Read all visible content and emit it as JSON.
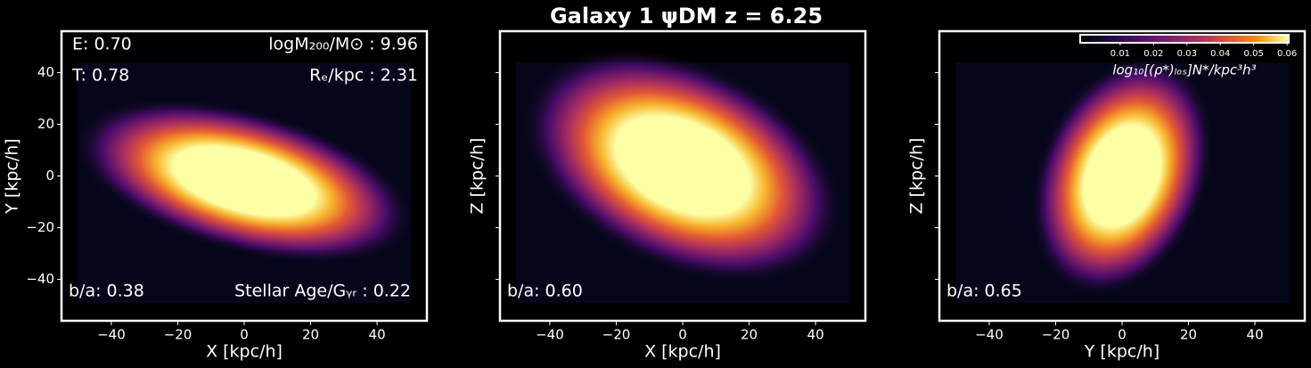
{
  "title": "Galaxy 1 ψDM  z = 6.25",
  "chart_data": [
    {
      "type": "heatmap",
      "xlabel": "X [kpc/h]",
      "ylabel": "Y [kpc/h]",
      "xlim": [
        -55,
        55
      ],
      "ylim": [
        -56,
        56
      ],
      "xticks": [
        {
          "value": -40,
          "label": "−40"
        },
        {
          "value": -20,
          "label": "−20"
        },
        0,
        20,
        40
      ],
      "yticks": [
        {
          "value": -40,
          "label": "−40"
        },
        {
          "value": -20,
          "label": "−20"
        },
        0,
        20,
        40
      ],
      "ytick_labels": true,
      "annotations": [
        {
          "text": "E: 0.70",
          "position": "top-left"
        },
        {
          "text": "T: 0.78",
          "position": "second-left"
        },
        {
          "text": "logM₂₀₀/M⊙ : 9.96",
          "position": "top-right"
        },
        {
          "text": "Rₑ/kpc : 2.31",
          "position": "second-right"
        },
        {
          "text": "b/a: 0.38",
          "position": "bottom-left"
        },
        {
          "text": "Stellar Age/Gᵧᵣ : 0.22",
          "position": "bottom-right"
        }
      ]
    },
    {
      "type": "heatmap",
      "xlabel": "X [kpc/h]",
      "ylabel": "Z [kpc/h]",
      "xlim": [
        -55,
        55
      ],
      "ylim": [
        -56,
        56
      ],
      "xticks": [
        {
          "value": -40,
          "label": "−40"
        },
        {
          "value": -20,
          "label": "−20"
        },
        0,
        20,
        40
      ],
      "yticks": [
        -40,
        -20,
        0,
        20,
        40
      ],
      "ytick_labels": false,
      "annotations": [
        {
          "text": "b/a: 0.60",
          "position": "bottom-left"
        }
      ]
    },
    {
      "type": "heatmap",
      "xlabel": "Y [kpc/h]",
      "ylabel": "Z [kpc/h]",
      "xlim": [
        -55,
        55
      ],
      "ylim": [
        -56,
        56
      ],
      "xticks": [
        {
          "value": -40,
          "label": "−40"
        },
        {
          "value": -20,
          "label": "−20"
        },
        0,
        20,
        40
      ],
      "yticks": [
        -40,
        -20,
        0,
        20,
        40
      ],
      "ytick_labels": false,
      "annotations": [
        {
          "text": "b/a: 0.65",
          "position": "bottom-left"
        }
      ],
      "colorbar": {
        "label": "log₁₀[(ρ*)ₗₒₛ]N*/kpc³h³",
        "lim": [
          -0.002,
          0.0605
        ],
        "ticks": [
          0.01,
          0.02,
          0.03,
          0.04,
          0.05,
          0.06
        ]
      }
    }
  ]
}
